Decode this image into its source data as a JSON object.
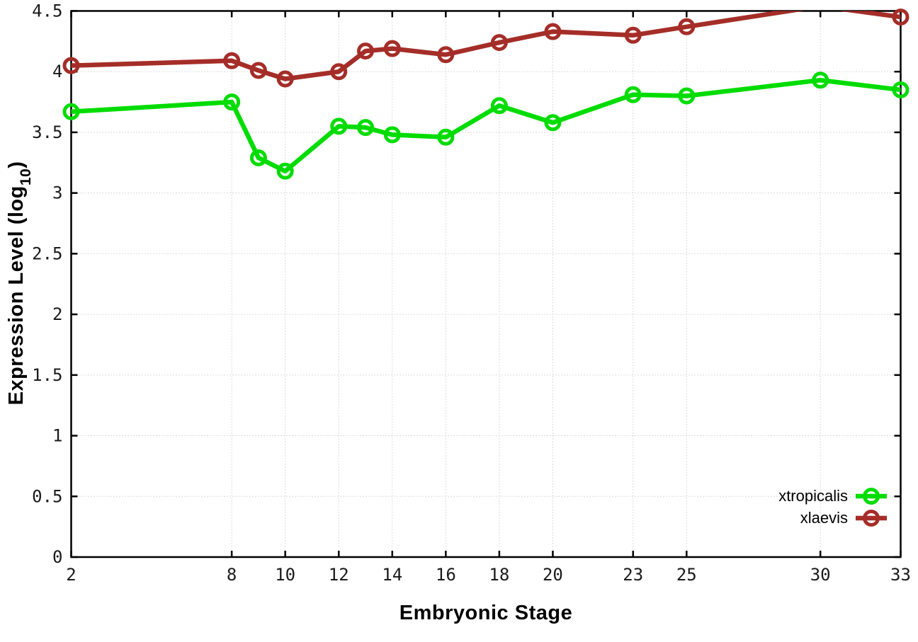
{
  "axes": {
    "x_label": "Embryonic Stage",
    "y_label_main": "Expression Level (log",
    "y_label_sub": "10",
    "y_label_close": ")"
  },
  "chart_data": {
    "type": "line",
    "title": "",
    "xlabel": "Embryonic Stage",
    "ylabel": "Expression Level (log10)",
    "x": [
      2,
      8,
      9,
      10,
      12,
      13,
      14,
      16,
      18,
      20,
      23,
      25,
      30,
      33
    ],
    "series": [
      {
        "name": "xtropicalis",
        "color": "#00dc00",
        "values": [
          3.67,
          3.75,
          3.29,
          3.18,
          3.55,
          3.54,
          3.48,
          3.46,
          3.72,
          3.58,
          3.81,
          3.8,
          3.93,
          3.85
        ]
      },
      {
        "name": "xlaevis",
        "color": "#a52d28",
        "values": [
          4.05,
          4.09,
          4.01,
          3.94,
          4.0,
          4.17,
          4.19,
          4.14,
          4.24,
          4.33,
          4.3,
          4.37,
          4.54,
          4.45
        ]
      }
    ],
    "xlim": [
      2,
      33
    ],
    "ylim": [
      0,
      4.5
    ],
    "xticks": [
      2,
      8,
      10,
      12,
      14,
      16,
      18,
      20,
      23,
      25,
      30,
      33
    ],
    "yticks": [
      0,
      0.5,
      1,
      1.5,
      2,
      2.5,
      3,
      3.5,
      4,
      4.5
    ],
    "grid": true,
    "marker": "open-circle",
    "legend_position": "bottom-right",
    "note": "xlaevis value at stage 30 exceeds y-axis max and is clipped at the plot border"
  }
}
